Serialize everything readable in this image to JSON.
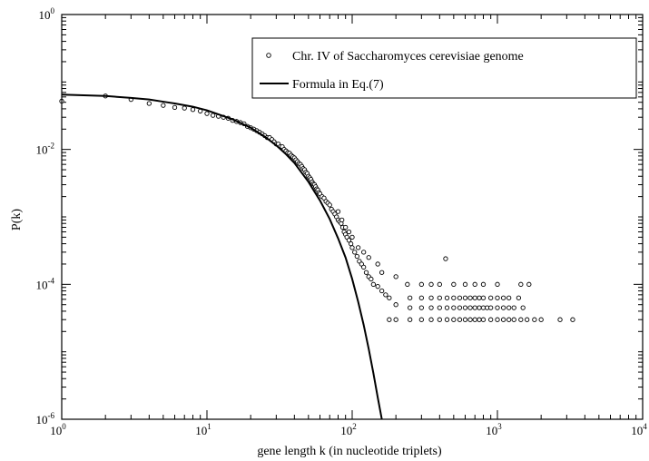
{
  "chart_data": {
    "type": "scatter",
    "title": "",
    "xlabel": "gene length k (in nucleotide triplets)",
    "ylabel": "P(k)",
    "x_scale": "log",
    "y_scale": "log",
    "xlim": [
      1,
      10000
    ],
    "ylim": [
      1e-06,
      1
    ],
    "grid": false,
    "legend_position": "top-right",
    "x_ticks": [
      {
        "base": "10",
        "exp": "0",
        "value": 1
      },
      {
        "base": "10",
        "exp": "1",
        "value": 10
      },
      {
        "base": "10",
        "exp": "2",
        "value": 100
      },
      {
        "base": "10",
        "exp": "3",
        "value": 1000
      },
      {
        "base": "10",
        "exp": "4",
        "value": 10000
      }
    ],
    "y_ticks": [
      {
        "base": "10",
        "exp": "0",
        "value": 1
      },
      {
        "base": "10",
        "exp": "-2",
        "value": 0.01
      },
      {
        "base": "10",
        "exp": "-4",
        "value": 0.0001
      },
      {
        "base": "10",
        "exp": "-6",
        "value": 1e-06
      }
    ],
    "series": [
      {
        "name": "Chr. IV of Saccharomyces cerevisiae genome",
        "kind": "scatter",
        "marker": "open-circle",
        "points": [
          [
            1,
            0.052
          ],
          [
            2,
            0.062
          ],
          [
            3,
            0.055
          ],
          [
            4,
            0.048
          ],
          [
            5,
            0.045
          ],
          [
            6,
            0.042
          ],
          [
            7,
            0.041
          ],
          [
            8,
            0.039
          ],
          [
            9,
            0.037
          ],
          [
            10,
            0.034
          ],
          [
            11,
            0.032
          ],
          [
            12,
            0.031
          ],
          [
            13,
            0.03
          ],
          [
            14,
            0.029
          ],
          [
            15,
            0.027
          ],
          [
            16,
            0.026
          ],
          [
            17,
            0.025
          ],
          [
            18,
            0.024
          ],
          [
            19,
            0.022
          ],
          [
            20,
            0.021
          ],
          [
            21,
            0.02
          ],
          [
            22,
            0.019
          ],
          [
            23,
            0.018
          ],
          [
            24,
            0.017
          ],
          [
            25,
            0.016
          ],
          [
            26,
            0.015
          ],
          [
            27,
            0.015
          ],
          [
            28,
            0.014
          ],
          [
            29,
            0.013
          ],
          [
            30,
            0.012
          ],
          [
            31,
            0.012
          ],
          [
            32,
            0.011
          ],
          [
            33,
            0.011
          ],
          [
            34,
            0.01
          ],
          [
            35,
            0.0095
          ],
          [
            36,
            0.009
          ],
          [
            37,
            0.0088
          ],
          [
            38,
            0.0082
          ],
          [
            39,
            0.0078
          ],
          [
            40,
            0.0075
          ],
          [
            41,
            0.007
          ],
          [
            42,
            0.0066
          ],
          [
            43,
            0.0062
          ],
          [
            44,
            0.006
          ],
          [
            45,
            0.0056
          ],
          [
            46,
            0.0052
          ],
          [
            47,
            0.005
          ],
          [
            48,
            0.0046
          ],
          [
            49,
            0.0044
          ],
          [
            50,
            0.004
          ],
          [
            51,
            0.0038
          ],
          [
            52,
            0.0036
          ],
          [
            53,
            0.0033
          ],
          [
            54,
            0.0031
          ],
          [
            55,
            0.003
          ],
          [
            56,
            0.0028
          ],
          [
            57,
            0.0026
          ],
          [
            58,
            0.0025
          ],
          [
            59,
            0.0023
          ],
          [
            60,
            0.0022
          ],
          [
            62,
            0.002
          ],
          [
            64,
            0.0019
          ],
          [
            66,
            0.0017
          ],
          [
            68,
            0.0016
          ],
          [
            70,
            0.0015
          ],
          [
            72,
            0.0013
          ],
          [
            74,
            0.0012
          ],
          [
            76,
            0.0011
          ],
          [
            78,
            0.001
          ],
          [
            80,
            0.0009
          ],
          [
            82,
            0.00085
          ],
          [
            84,
            0.0008
          ],
          [
            86,
            0.0007
          ],
          [
            88,
            0.0006
          ],
          [
            90,
            0.00055
          ],
          [
            92,
            0.0005
          ],
          [
            95,
            0.00045
          ],
          [
            98,
            0.0004
          ],
          [
            100,
            0.00035
          ],
          [
            104,
            0.0003
          ],
          [
            108,
            0.00026
          ],
          [
            112,
            0.00022
          ],
          [
            116,
            0.0002
          ],
          [
            120,
            0.00018
          ],
          [
            125,
            0.00015
          ],
          [
            130,
            0.00013
          ],
          [
            135,
            0.00012
          ],
          [
            140,
            0.0001
          ],
          [
            150,
            9.3e-05
          ],
          [
            160,
            8e-05
          ],
          [
            170,
            7e-05
          ],
          [
            180,
            6.3e-05
          ],
          [
            200,
            5e-05
          ],
          [
            80,
            0.0012
          ],
          [
            85,
            0.0009
          ],
          [
            90,
            0.0007
          ],
          [
            95,
            0.0006
          ],
          [
            100,
            0.0005
          ],
          [
            110,
            0.00035
          ],
          [
            120,
            0.0003
          ],
          [
            130,
            0.00025
          ],
          [
            150,
            0.0002
          ],
          [
            160,
            0.00015
          ],
          [
            200,
            0.00013
          ],
          [
            240,
            0.0001
          ],
          [
            440,
            0.00024
          ],
          [
            300,
            0.0001
          ],
          [
            350,
            0.0001
          ],
          [
            400,
            0.0001
          ],
          [
            500,
            0.0001
          ],
          [
            600,
            0.0001
          ],
          [
            700,
            0.0001
          ],
          [
            800,
            0.0001
          ],
          [
            1000,
            0.0001
          ],
          [
            1450,
            0.0001
          ],
          [
            1650,
            0.0001
          ],
          [
            250,
            6.3e-05
          ],
          [
            300,
            6.3e-05
          ],
          [
            350,
            6.3e-05
          ],
          [
            400,
            6.3e-05
          ],
          [
            450,
            6.3e-05
          ],
          [
            500,
            6.3e-05
          ],
          [
            550,
            6.3e-05
          ],
          [
            600,
            6.3e-05
          ],
          [
            650,
            6.3e-05
          ],
          [
            700,
            6.3e-05
          ],
          [
            750,
            6.3e-05
          ],
          [
            800,
            6.3e-05
          ],
          [
            900,
            6.3e-05
          ],
          [
            1000,
            6.3e-05
          ],
          [
            1100,
            6.3e-05
          ],
          [
            1200,
            6.3e-05
          ],
          [
            1400,
            6.3e-05
          ],
          [
            250,
            4.5e-05
          ],
          [
            300,
            4.5e-05
          ],
          [
            350,
            4.5e-05
          ],
          [
            400,
            4.5e-05
          ],
          [
            450,
            4.5e-05
          ],
          [
            500,
            4.5e-05
          ],
          [
            550,
            4.5e-05
          ],
          [
            600,
            4.5e-05
          ],
          [
            650,
            4.5e-05
          ],
          [
            700,
            4.5e-05
          ],
          [
            750,
            4.5e-05
          ],
          [
            800,
            4.5e-05
          ],
          [
            850,
            4.5e-05
          ],
          [
            900,
            4.5e-05
          ],
          [
            1000,
            4.5e-05
          ],
          [
            1100,
            4.5e-05
          ],
          [
            1200,
            4.5e-05
          ],
          [
            1300,
            4.5e-05
          ],
          [
            1500,
            4.5e-05
          ],
          [
            180,
            3e-05
          ],
          [
            200,
            3e-05
          ],
          [
            250,
            3e-05
          ],
          [
            300,
            3e-05
          ],
          [
            350,
            3e-05
          ],
          [
            400,
            3e-05
          ],
          [
            450,
            3e-05
          ],
          [
            500,
            3e-05
          ],
          [
            550,
            3e-05
          ],
          [
            600,
            3e-05
          ],
          [
            650,
            3e-05
          ],
          [
            700,
            3e-05
          ],
          [
            750,
            3e-05
          ],
          [
            800,
            3e-05
          ],
          [
            900,
            3e-05
          ],
          [
            1000,
            3e-05
          ],
          [
            1100,
            3e-05
          ],
          [
            1200,
            3e-05
          ],
          [
            1300,
            3e-05
          ],
          [
            1450,
            3e-05
          ],
          [
            1600,
            3e-05
          ],
          [
            1800,
            3e-05
          ],
          [
            2000,
            3e-05
          ],
          [
            2700,
            3e-05
          ],
          [
            3300,
            3e-05
          ]
        ]
      },
      {
        "name": "Formula in Eq.(7)",
        "kind": "line",
        "points": [
          [
            1,
            0.065
          ],
          [
            2,
            0.062
          ],
          [
            3,
            0.058
          ],
          [
            4,
            0.055
          ],
          [
            5,
            0.051
          ],
          [
            6,
            0.048
          ],
          [
            8,
            0.043
          ],
          [
            10,
            0.038
          ],
          [
            15,
            0.028
          ],
          [
            20,
            0.021
          ],
          [
            25,
            0.0155
          ],
          [
            30,
            0.0115
          ],
          [
            35,
            0.0085
          ],
          [
            40,
            0.0063
          ],
          [
            50,
            0.0033
          ],
          [
            60,
            0.00175
          ],
          [
            70,
            0.00093
          ],
          [
            80,
            0.00048
          ],
          [
            90,
            0.00025
          ],
          [
            100,
            0.00012
          ],
          [
            110,
            5.5e-05
          ],
          [
            120,
            2.5e-05
          ],
          [
            130,
            1.1e-05
          ],
          [
            140,
            4.8e-06
          ],
          [
            150,
            2.1e-06
          ],
          [
            160,
            1e-06
          ]
        ]
      }
    ]
  }
}
